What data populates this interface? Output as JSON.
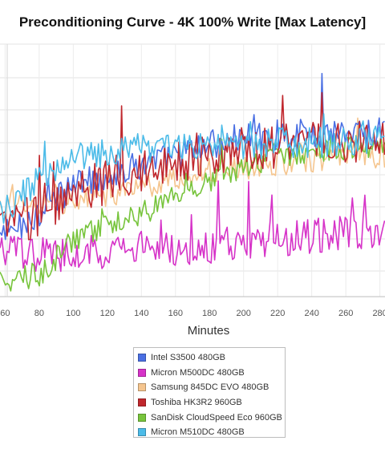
{
  "chart_data": {
    "type": "line",
    "title": "Preconditioning Curve - 4K 100% Write [Max Latency]",
    "xlabel": "Minutes",
    "ylabel": "",
    "x_ticks": [
      60,
      80,
      100,
      120,
      140,
      160,
      180,
      200,
      220,
      240,
      260,
      280
    ],
    "xlim": [
      57,
      283
    ],
    "ylim": [
      0,
      1
    ],
    "grid": true,
    "legend_position": "bottom",
    "series": [
      {
        "name": "Intel S3500 480GB",
        "color": "#4a6fe3",
        "x": [
          60,
          80,
          100,
          120,
          140,
          160,
          180,
          200,
          220,
          240,
          260,
          280
        ],
        "values": [
          0.24,
          0.33,
          0.44,
          0.48,
          0.52,
          0.56,
          0.6,
          0.63,
          0.64,
          0.65,
          0.66,
          0.65
        ]
      },
      {
        "name": "Micron M500DC 480GB",
        "color": "#d633c8",
        "x": [
          60,
          80,
          100,
          120,
          140,
          160,
          180,
          200,
          220,
          240,
          260,
          280
        ],
        "values": [
          0.17,
          0.17,
          0.17,
          0.18,
          0.19,
          0.19,
          0.2,
          0.21,
          0.22,
          0.24,
          0.25,
          0.25
        ]
      },
      {
        "name": "Samsung 845DC EVO 480GB",
        "color": "#f5c58e",
        "x": [
          60,
          80,
          100,
          120,
          140,
          160,
          180,
          200,
          220,
          240,
          260,
          280
        ],
        "values": [
          0.36,
          0.37,
          0.38,
          0.4,
          0.43,
          0.47,
          0.5,
          0.51,
          0.53,
          0.54,
          0.55,
          0.56
        ]
      },
      {
        "name": "Toshiba HK3R2 960GB",
        "color": "#c0272d",
        "x": [
          60,
          80,
          100,
          120,
          140,
          160,
          180,
          200,
          220,
          240,
          260,
          280
        ],
        "values": [
          0.28,
          0.33,
          0.4,
          0.46,
          0.5,
          0.54,
          0.57,
          0.58,
          0.6,
          0.61,
          0.62,
          0.62
        ]
      },
      {
        "name": "SanDisk CloudSpeed Eco 960GB",
        "color": "#77c43c",
        "x": [
          60,
          80,
          100,
          120,
          140,
          160,
          180,
          200,
          220,
          240,
          260,
          280
        ],
        "values": [
          0.07,
          0.08,
          0.23,
          0.28,
          0.33,
          0.4,
          0.46,
          0.52,
          0.56,
          0.58,
          0.59,
          0.6
        ]
      },
      {
        "name": "Micron M510DC 480GB",
        "color": "#4bbbe8",
        "x": [
          60,
          80,
          100,
          120,
          140,
          160,
          180,
          200,
          220,
          240,
          260,
          280
        ],
        "values": [
          0.34,
          0.46,
          0.55,
          0.57,
          0.58,
          0.59,
          0.6,
          0.6,
          0.61,
          0.61,
          0.61,
          0.62
        ]
      }
    ]
  }
}
